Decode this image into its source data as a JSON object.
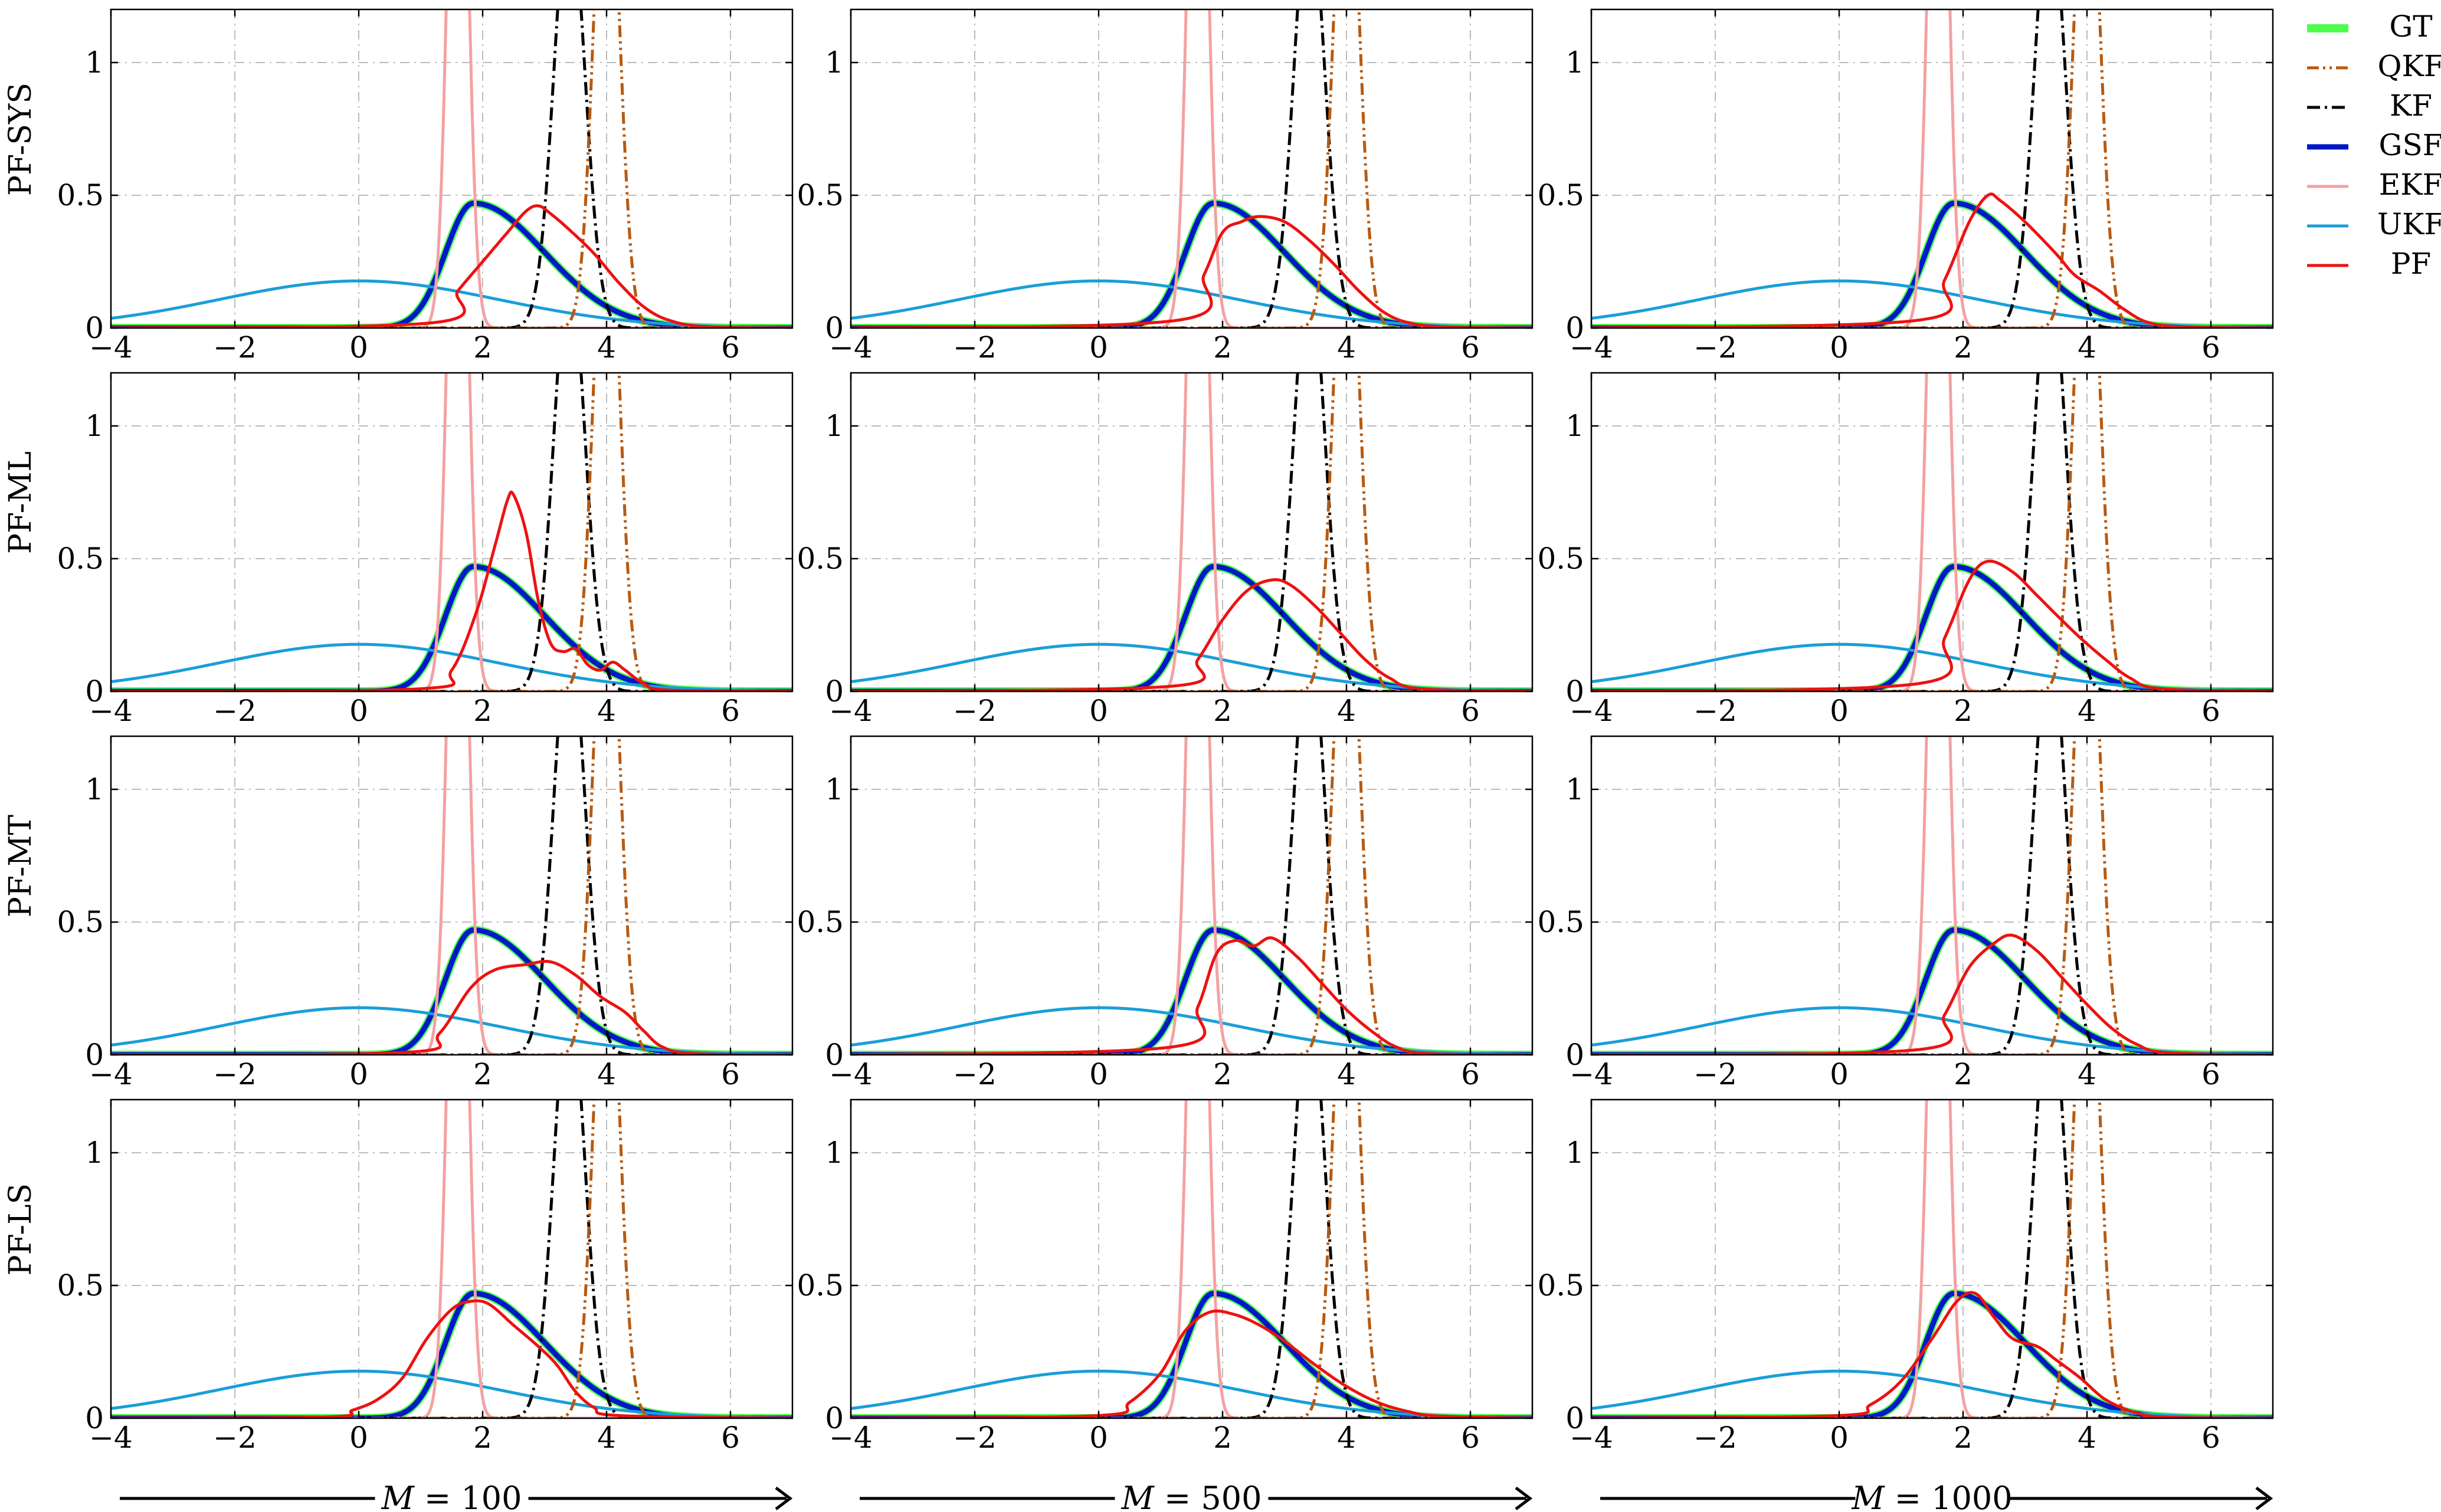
{
  "chart_data": {
    "type": "line",
    "description": "Grid of density plots: rows = particle filter resampling methods, columns = number of particles M",
    "rows": [
      "PF-SYS",
      "PF-ML",
      "PF-MT",
      "PF-LS"
    ],
    "columns": [
      {
        "prefix": "M = ",
        "value": "100"
      },
      {
        "prefix": "M = ",
        "value": "500"
      },
      {
        "prefix": "M = ",
        "value": "1000"
      }
    ],
    "xlim": [
      -4,
      7
    ],
    "ylim": [
      0,
      1.2
    ],
    "xticks": [
      -4,
      -2,
      0,
      2,
      4,
      6
    ],
    "xtick_labels": [
      "−4",
      "−2",
      "0",
      "2",
      "4",
      "6"
    ],
    "yticks": [
      0,
      0.5,
      1
    ],
    "ytick_labels": [
      "0",
      "0.5",
      "1"
    ],
    "grid": true,
    "legend_position": "top-right (outside)",
    "legend": [
      "GT",
      "QKF",
      "KF",
      "GSF",
      "EKF",
      "UKF",
      "PF"
    ],
    "series_styles": {
      "GT": {
        "color": "#4dff4d",
        "dash": "solid"
      },
      "QKF": {
        "color": "#b85a10",
        "dash": "dash-dot-dot"
      },
      "KF": {
        "color": "#000000",
        "dash": "dash-dot"
      },
      "GSF": {
        "color": "#0018c8",
        "dash": "solid"
      },
      "EKF": {
        "color": "#f4a2a2",
        "dash": "solid"
      },
      "UKF": {
        "color": "#1a9ed8",
        "dash": "solid"
      },
      "PF": {
        "color": "#ee1111",
        "dash": "solid"
      }
    },
    "common_series_params": {
      "GT": {
        "kind": "skew_gauss",
        "loc": 1.85,
        "sigma_left": 0.45,
        "sigma_right": 1.15,
        "peak": 0.47
      },
      "GSF": {
        "kind": "skew_gauss",
        "loc": 1.85,
        "sigma_left": 0.45,
        "sigma_right": 1.15,
        "peak": 0.47
      },
      "QKF": {
        "kind": "gauss",
        "mean": 4.0,
        "sigma": 0.2
      },
      "KF": {
        "kind": "gauss",
        "mean": 3.4,
        "sigma": 0.25
      },
      "EKF": {
        "kind": "gauss",
        "mean": 1.6,
        "sigma": 0.15
      },
      "UKF": {
        "kind": "gauss",
        "mean": 0.0,
        "sigma": 2.25
      }
    },
    "pf_series": [
      [
        [
          [
            -4,
            0
          ],
          [
            1.2,
            0.02
          ],
          [
            1.6,
            0.14
          ],
          [
            2.0,
            0.25
          ],
          [
            2.4,
            0.36
          ],
          [
            2.7,
            0.44
          ],
          [
            2.9,
            0.46
          ],
          [
            3.1,
            0.43
          ],
          [
            3.4,
            0.37
          ],
          [
            3.8,
            0.28
          ],
          [
            4.2,
            0.17
          ],
          [
            4.6,
            0.08
          ],
          [
            5.0,
            0.03
          ],
          [
            5.6,
            0.005
          ],
          [
            7,
            0
          ]
        ],
        [
          [
            -4,
            0
          ],
          [
            1.3,
            0.03
          ],
          [
            1.7,
            0.2
          ],
          [
            2.0,
            0.36
          ],
          [
            2.3,
            0.4
          ],
          [
            2.6,
            0.42
          ],
          [
            3.0,
            0.4
          ],
          [
            3.4,
            0.33
          ],
          [
            3.8,
            0.24
          ],
          [
            4.2,
            0.14
          ],
          [
            4.6,
            0.06
          ],
          [
            5.0,
            0.02
          ],
          [
            5.6,
            0.004
          ],
          [
            7,
            0
          ]
        ],
        [
          [
            -4,
            0
          ],
          [
            1.3,
            0.03
          ],
          [
            1.7,
            0.18
          ],
          [
            2.1,
            0.4
          ],
          [
            2.4,
            0.5
          ],
          [
            2.6,
            0.48
          ],
          [
            3.0,
            0.4
          ],
          [
            3.5,
            0.28
          ],
          [
            3.8,
            0.2
          ],
          [
            4.2,
            0.14
          ],
          [
            4.6,
            0.07
          ],
          [
            5.0,
            0.02
          ],
          [
            5.6,
            0.004
          ],
          [
            7,
            0
          ]
        ]
      ],
      [
        [
          [
            -4,
            0
          ],
          [
            1.0,
            0.01
          ],
          [
            1.5,
            0.08
          ],
          [
            1.9,
            0.3
          ],
          [
            2.2,
            0.55
          ],
          [
            2.4,
            0.72
          ],
          [
            2.5,
            0.74
          ],
          [
            2.7,
            0.6
          ],
          [
            2.9,
            0.34
          ],
          [
            3.1,
            0.18
          ],
          [
            3.3,
            0.15
          ],
          [
            3.5,
            0.16
          ],
          [
            3.7,
            0.1
          ],
          [
            3.9,
            0.08
          ],
          [
            4.1,
            0.11
          ],
          [
            4.3,
            0.08
          ],
          [
            4.6,
            0.03
          ],
          [
            5.0,
            0.005
          ],
          [
            7,
            0
          ]
        ],
        [
          [
            -4,
            0
          ],
          [
            1.2,
            0.02
          ],
          [
            1.6,
            0.12
          ],
          [
            2.0,
            0.27
          ],
          [
            2.4,
            0.38
          ],
          [
            2.8,
            0.42
          ],
          [
            3.1,
            0.4
          ],
          [
            3.5,
            0.32
          ],
          [
            3.9,
            0.22
          ],
          [
            4.3,
            0.12
          ],
          [
            4.7,
            0.05
          ],
          [
            5.2,
            0.01
          ],
          [
            7,
            0
          ]
        ],
        [
          [
            -4,
            0
          ],
          [
            1.3,
            0.03
          ],
          [
            1.7,
            0.2
          ],
          [
            2.1,
            0.42
          ],
          [
            2.4,
            0.49
          ],
          [
            2.8,
            0.45
          ],
          [
            3.2,
            0.36
          ],
          [
            3.5,
            0.29
          ],
          [
            3.9,
            0.2
          ],
          [
            4.3,
            0.12
          ],
          [
            4.7,
            0.05
          ],
          [
            5.2,
            0.01
          ],
          [
            7,
            0
          ]
        ]
      ],
      [
        [
          [
            -4,
            0
          ],
          [
            0.8,
            0.01
          ],
          [
            1.3,
            0.08
          ],
          [
            1.8,
            0.25
          ],
          [
            2.2,
            0.32
          ],
          [
            2.7,
            0.34
          ],
          [
            3.1,
            0.35
          ],
          [
            3.5,
            0.3
          ],
          [
            3.9,
            0.22
          ],
          [
            4.3,
            0.16
          ],
          [
            4.6,
            0.09
          ],
          [
            4.9,
            0.03
          ],
          [
            5.4,
            0.005
          ],
          [
            7,
            0
          ]
        ],
        [
          [
            -4,
            0
          ],
          [
            1.2,
            0.03
          ],
          [
            1.6,
            0.18
          ],
          [
            1.9,
            0.38
          ],
          [
            2.2,
            0.43
          ],
          [
            2.5,
            0.41
          ],
          [
            2.8,
            0.44
          ],
          [
            3.2,
            0.37
          ],
          [
            3.6,
            0.27
          ],
          [
            4.0,
            0.17
          ],
          [
            4.4,
            0.09
          ],
          [
            4.8,
            0.03
          ],
          [
            5.3,
            0.005
          ],
          [
            7,
            0
          ]
        ],
        [
          [
            -4,
            0
          ],
          [
            1.3,
            0.02
          ],
          [
            1.7,
            0.15
          ],
          [
            2.1,
            0.33
          ],
          [
            2.5,
            0.42
          ],
          [
            2.8,
            0.45
          ],
          [
            3.2,
            0.39
          ],
          [
            3.6,
            0.29
          ],
          [
            4.0,
            0.19
          ],
          [
            4.4,
            0.1
          ],
          [
            4.8,
            0.04
          ],
          [
            5.3,
            0.008
          ],
          [
            7,
            0
          ]
        ]
      ],
      [
        [
          [
            -4,
            0
          ],
          [
            -0.5,
            0.005
          ],
          [
            -0.1,
            0.03
          ],
          [
            0.3,
            0.07
          ],
          [
            0.7,
            0.15
          ],
          [
            1.1,
            0.3
          ],
          [
            1.5,
            0.41
          ],
          [
            1.8,
            0.44
          ],
          [
            2.1,
            0.43
          ],
          [
            2.5,
            0.35
          ],
          [
            2.9,
            0.27
          ],
          [
            3.2,
            0.2
          ],
          [
            3.5,
            0.1
          ],
          [
            3.8,
            0.04
          ],
          [
            4.2,
            0.01
          ],
          [
            7,
            0
          ]
        ],
        [
          [
            -4,
            0
          ],
          [
            0.0,
            0.01
          ],
          [
            0.5,
            0.06
          ],
          [
            1.0,
            0.17
          ],
          [
            1.4,
            0.33
          ],
          [
            1.8,
            0.4
          ],
          [
            2.2,
            0.39
          ],
          [
            2.6,
            0.35
          ],
          [
            3.0,
            0.29
          ],
          [
            3.5,
            0.2
          ],
          [
            4.0,
            0.12
          ],
          [
            4.5,
            0.06
          ],
          [
            5.0,
            0.025
          ],
          [
            5.5,
            0.008
          ],
          [
            7,
            0
          ]
        ],
        [
          [
            -4,
            0
          ],
          [
            0.0,
            0.01
          ],
          [
            0.5,
            0.05
          ],
          [
            1.0,
            0.14
          ],
          [
            1.5,
            0.3
          ],
          [
            1.9,
            0.44
          ],
          [
            2.2,
            0.47
          ],
          [
            2.5,
            0.38
          ],
          [
            2.8,
            0.3
          ],
          [
            3.2,
            0.27
          ],
          [
            3.5,
            0.22
          ],
          [
            3.9,
            0.15
          ],
          [
            4.3,
            0.07
          ],
          [
            4.8,
            0.02
          ],
          [
            5.3,
            0.004
          ],
          [
            7,
            0
          ]
        ]
      ]
    ]
  }
}
